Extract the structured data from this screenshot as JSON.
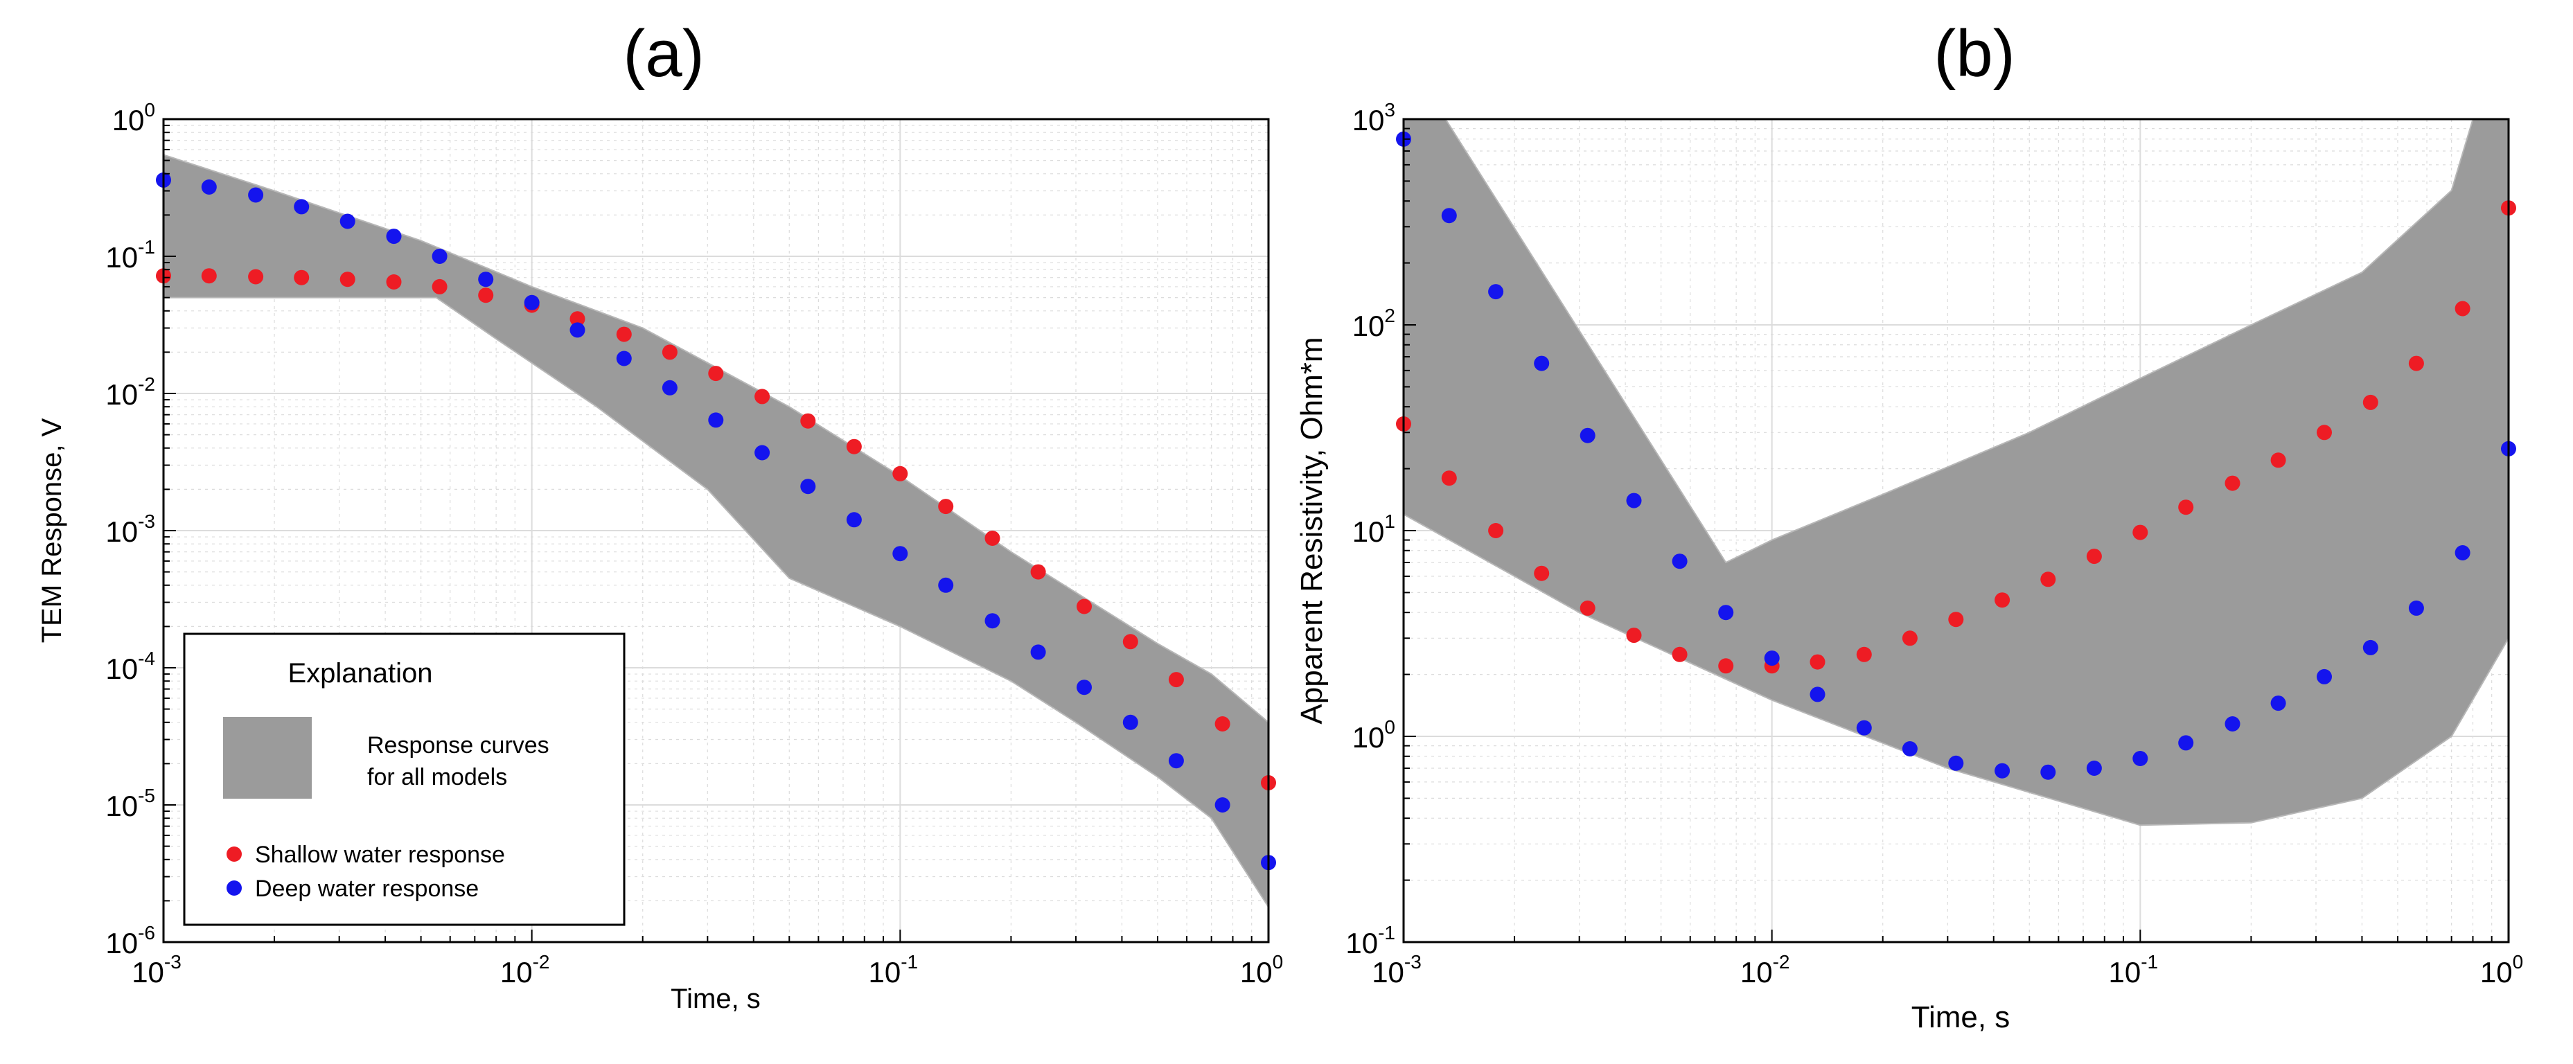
{
  "colors": {
    "band": "#9b9b9b",
    "band_line": "#b7b7b7",
    "shallow": "#ee1c24",
    "deep": "#1414ee",
    "grid": "#dcdcdc",
    "axis": "#000000"
  },
  "panels": [
    {
      "label": "(a)",
      "xlabel": "Time, s",
      "ylabel": "TEM Response, V"
    },
    {
      "label": "(b)",
      "xlabel": "Time, s",
      "ylabel": "Apparent Resistivity, Ohm*m"
    }
  ],
  "legend": {
    "title": "Explanation",
    "band_line1": "Response curves",
    "band_line2": "for all models",
    "shallow_label": "Shallow water response",
    "deep_label": "Deep water response",
    "placement": "bottom-left of panel (a)"
  },
  "chart_data": [
    {
      "type": "scatter",
      "title": "(a)",
      "xlabel": "Time, s",
      "ylabel": "TEM Response, V",
      "xscale": "log",
      "yscale": "log",
      "xlim": [
        0.001,
        1
      ],
      "ylim": [
        1e-06,
        1
      ],
      "xticks": [
        {
          "base": "10",
          "exp": "-3",
          "value": 0.001
        },
        {
          "base": "10",
          "exp": "-2",
          "value": 0.01
        },
        {
          "base": "10",
          "exp": "-1",
          "value": 0.1
        },
        {
          "base": "10",
          "exp": "0",
          "value": 1
        }
      ],
      "yticks": [
        {
          "base": "10",
          "exp": "-6",
          "value": 1e-06
        },
        {
          "base": "10",
          "exp": "-5",
          "value": 1e-05
        },
        {
          "base": "10",
          "exp": "-4",
          "value": 0.0001
        },
        {
          "base": "10",
          "exp": "-3",
          "value": 0.001
        },
        {
          "base": "10",
          "exp": "-2",
          "value": 0.01
        },
        {
          "base": "10",
          "exp": "-1",
          "value": 0.1
        },
        {
          "base": "10",
          "exp": "0",
          "value": 1
        }
      ],
      "grid": true,
      "band": {
        "name": "Response curves for all models",
        "upper": [
          [
            0.001,
            0.55
          ],
          [
            0.002,
            0.3
          ],
          [
            0.005,
            0.13
          ],
          [
            0.01,
            0.06
          ],
          [
            0.02,
            0.03
          ],
          [
            0.05,
            0.008
          ],
          [
            0.1,
            0.0025
          ],
          [
            0.2,
            0.0007
          ],
          [
            0.5,
            0.00015
          ],
          [
            0.7,
            9e-05
          ],
          [
            1,
            4e-05
          ]
        ],
        "lower": [
          [
            0.001,
            0.05
          ],
          [
            0.0055,
            0.05
          ],
          [
            0.008,
            0.025
          ],
          [
            0.015,
            0.008
          ],
          [
            0.03,
            0.002
          ],
          [
            0.05,
            0.00045
          ],
          [
            0.1,
            0.0002
          ],
          [
            0.2,
            8e-05
          ],
          [
            0.3,
            4e-05
          ],
          [
            0.5,
            1.6e-05
          ],
          [
            0.7,
            8e-06
          ],
          [
            1,
            1.8e-06
          ]
        ]
      },
      "series": [
        {
          "name": "Shallow water response",
          "color": "#ee1c24",
          "x": [
            0.001,
            0.00133,
            0.00178,
            0.00237,
            0.00316,
            0.00422,
            0.00562,
            0.0075,
            0.01,
            0.0133,
            0.0178,
            0.0237,
            0.0316,
            0.0422,
            0.0562,
            0.075,
            0.1,
            0.133,
            0.178,
            0.237,
            0.316,
            0.422,
            0.562,
            0.75,
            1
          ],
          "y": [
            0.072,
            0.072,
            0.071,
            0.07,
            0.068,
            0.065,
            0.06,
            0.052,
            0.044,
            0.035,
            0.027,
            0.02,
            0.014,
            0.0095,
            0.0063,
            0.0041,
            0.0026,
            0.0015,
            0.00088,
            0.0005,
            0.00028,
            0.000155,
            8.2e-05,
            3.9e-05,
            1.45e-05
          ]
        },
        {
          "name": "Deep water response",
          "color": "#1414ee",
          "x": [
            0.001,
            0.00133,
            0.00178,
            0.00237,
            0.00316,
            0.00422,
            0.00562,
            0.0075,
            0.01,
            0.0133,
            0.0178,
            0.0237,
            0.0316,
            0.0422,
            0.0562,
            0.075,
            0.1,
            0.133,
            0.178,
            0.237,
            0.316,
            0.422,
            0.562,
            0.75,
            1
          ],
          "y": [
            0.36,
            0.32,
            0.28,
            0.23,
            0.18,
            0.14,
            0.1,
            0.068,
            0.046,
            0.029,
            0.018,
            0.011,
            0.0064,
            0.0037,
            0.0021,
            0.0012,
            0.00068,
            0.0004,
            0.00022,
            0.00013,
            7.2e-05,
            4e-05,
            2.1e-05,
            1e-05,
            3.8e-06
          ]
        }
      ]
    },
    {
      "type": "scatter",
      "title": "(b)",
      "xlabel": "Time, s",
      "ylabel": "Apparent Resistivity, Ohm*m",
      "xscale": "log",
      "yscale": "log",
      "xlim": [
        0.001,
        1
      ],
      "ylim": [
        0.1,
        1000
      ],
      "xticks": [
        {
          "base": "10",
          "exp": "-3",
          "value": 0.001
        },
        {
          "base": "10",
          "exp": "-2",
          "value": 0.01
        },
        {
          "base": "10",
          "exp": "-1",
          "value": 0.1
        },
        {
          "base": "10",
          "exp": "0",
          "value": 1
        }
      ],
      "yticks": [
        {
          "base": "10",
          "exp": "-1",
          "value": 0.1
        },
        {
          "base": "10",
          "exp": "0",
          "value": 1
        },
        {
          "base": "10",
          "exp": "1",
          "value": 10
        },
        {
          "base": "10",
          "exp": "2",
          "value": 100
        },
        {
          "base": "10",
          "exp": "3",
          "value": 1000
        }
      ],
      "grid": true,
      "band": {
        "name": "Response curves for all models",
        "upper": [
          [
            0.001,
            1000
          ],
          [
            0.0013,
            1000
          ],
          [
            0.0075,
            7
          ],
          [
            0.01,
            9
          ],
          [
            0.02,
            15
          ],
          [
            0.05,
            30
          ],
          [
            0.1,
            55
          ],
          [
            0.2,
            100
          ],
          [
            0.4,
            180
          ],
          [
            0.7,
            450
          ],
          [
            0.8,
            1000
          ],
          [
            1,
            1000
          ]
        ],
        "lower": [
          [
            0.001,
            12
          ],
          [
            0.003,
            4
          ],
          [
            0.01,
            1.5
          ],
          [
            0.03,
            0.7
          ],
          [
            0.1,
            0.37
          ],
          [
            0.2,
            0.38
          ],
          [
            0.4,
            0.5
          ],
          [
            0.7,
            1
          ],
          [
            1,
            3
          ]
        ]
      },
      "series": [
        {
          "name": "Shallow water response",
          "color": "#ee1c24",
          "x": [
            0.001,
            0.00133,
            0.00178,
            0.00237,
            0.00316,
            0.00422,
            0.00562,
            0.0075,
            0.01,
            0.0133,
            0.0178,
            0.0237,
            0.0316,
            0.0422,
            0.0562,
            0.075,
            0.1,
            0.133,
            0.178,
            0.237,
            0.316,
            0.422,
            0.562,
            0.75,
            1
          ],
          "y": [
            33,
            18,
            10,
            6.2,
            4.2,
            3.1,
            2.5,
            2.2,
            2.2,
            2.3,
            2.5,
            3,
            3.7,
            4.6,
            5.8,
            7.5,
            9.8,
            13,
            17,
            22,
            30,
            42,
            65,
            120,
            370
          ]
        },
        {
          "name": "Deep water response",
          "color": "#1414ee",
          "x": [
            0.001,
            0.00133,
            0.00178,
            0.00237,
            0.00316,
            0.00422,
            0.00562,
            0.0075,
            0.01,
            0.0133,
            0.0178,
            0.0237,
            0.0316,
            0.0422,
            0.0562,
            0.075,
            0.1,
            0.133,
            0.178,
            0.237,
            0.316,
            0.422,
            0.562,
            0.75,
            1
          ],
          "y": [
            800,
            340,
            145,
            65,
            29,
            14,
            7.1,
            4,
            2.4,
            1.6,
            1.1,
            0.87,
            0.74,
            0.68,
            0.67,
            0.7,
            0.78,
            0.93,
            1.15,
            1.45,
            1.95,
            2.7,
            4.2,
            7.8,
            25
          ]
        }
      ]
    }
  ]
}
